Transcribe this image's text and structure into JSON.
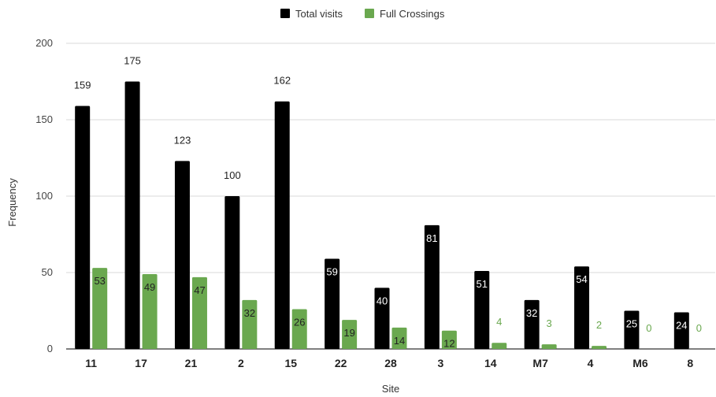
{
  "chart_data": {
    "type": "bar",
    "title": "",
    "xlabel": "Site",
    "ylabel": "Frequency",
    "ylim": [
      0,
      200
    ],
    "yticks": [
      0,
      50,
      100,
      150,
      200
    ],
    "grid": true,
    "legend_position": "top-center",
    "categories": [
      "11",
      "17",
      "21",
      "2",
      "15",
      "22",
      "28",
      "3",
      "14",
      "M7",
      "4",
      "M6",
      "8"
    ],
    "series": [
      {
        "name": "Total visits",
        "color": "#000000",
        "values": [
          159,
          175,
          123,
          100,
          162,
          59,
          40,
          81,
          51,
          32,
          54,
          25,
          24
        ],
        "label_positions": [
          "above",
          "above",
          "above",
          "above",
          "above",
          "inside",
          "inside",
          "inside",
          "inside",
          "inside",
          "inside",
          "inside",
          "inside"
        ]
      },
      {
        "name": "Full Crossings",
        "color": "#6aa84f",
        "values": [
          53,
          49,
          47,
          32,
          26,
          19,
          14,
          12,
          4,
          3,
          2,
          0,
          0
        ],
        "label_positions": [
          "inside",
          "inside",
          "inside",
          "inside",
          "inside",
          "inside",
          "inside",
          "inside",
          "above",
          "above",
          "above",
          "above",
          "above"
        ]
      }
    ]
  }
}
